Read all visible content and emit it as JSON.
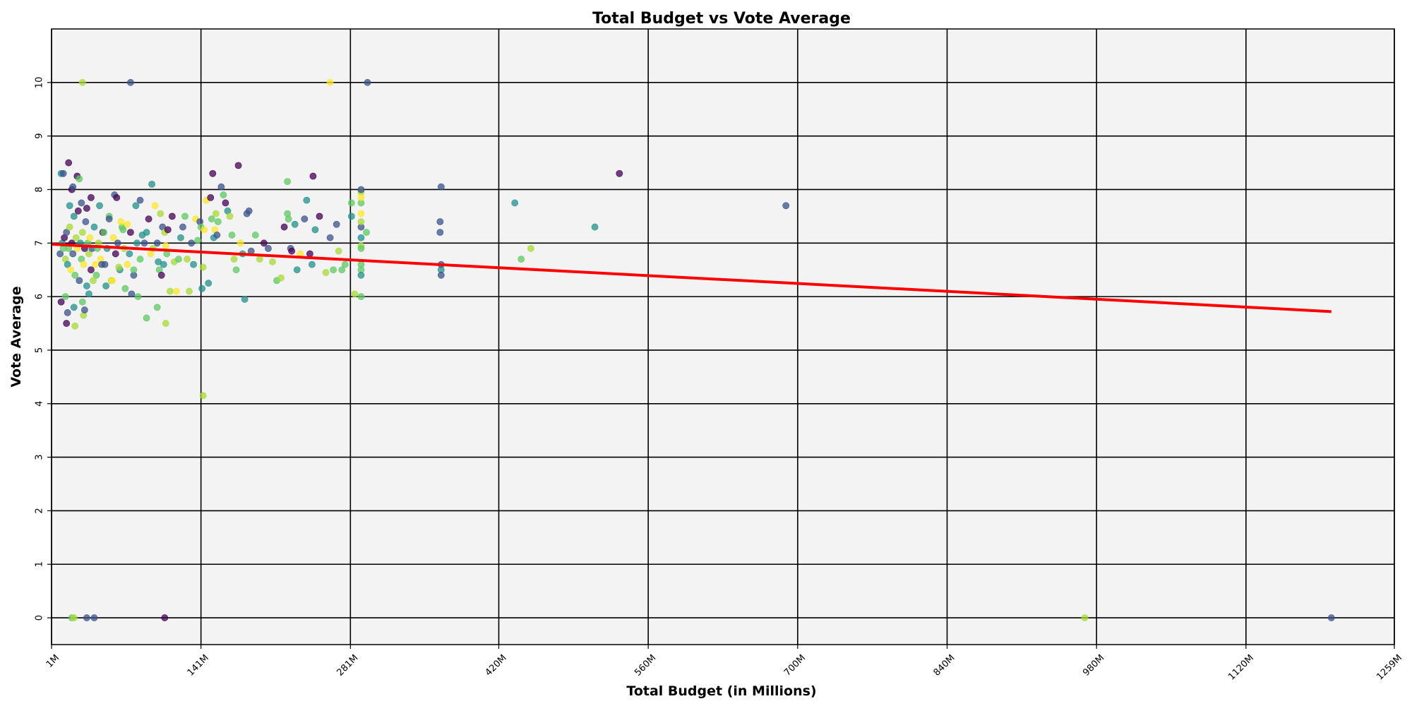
{
  "chart_data": {
    "type": "scatter",
    "title": "Total Budget vs Vote Average",
    "xlabel": "Total Budget (in Millions)",
    "ylabel": "Vote Average",
    "xlim": [
      1,
      1259
    ],
    "ylim": [
      -0.5,
      11
    ],
    "x_ticks": [
      1,
      141,
      281,
      420,
      560,
      700,
      840,
      980,
      1120,
      1259
    ],
    "x_tick_labels": [
      "1M",
      "141M",
      "281M",
      "420M",
      "560M",
      "700M",
      "840M",
      "980M",
      "1120M",
      "1259M"
    ],
    "y_ticks": [
      0,
      1,
      2,
      3,
      4,
      5,
      6,
      7,
      8,
      9,
      10
    ],
    "y_tick_labels": [
      "0",
      "1",
      "2",
      "3",
      "4",
      "5",
      "6",
      "7",
      "8",
      "9",
      "10"
    ],
    "grid": true,
    "legend": "none",
    "colors": {
      "plot_background": "#f3f3f3",
      "grid": "#000000",
      "trend_line": "#ff0000",
      "palette": [
        "#440154",
        "#3b528b",
        "#21918c",
        "#5ec962",
        "#a8db34",
        "#fde725"
      ]
    },
    "series": [
      {
        "points": [
          [
            9,
            6.8,
            1
          ],
          [
            11,
            7.0,
            2
          ],
          [
            12,
            6.9,
            3
          ],
          [
            13,
            7.1,
            0
          ],
          [
            14,
            6.7,
            4
          ],
          [
            15,
            7.2,
            1
          ],
          [
            16,
            6.6,
            2
          ],
          [
            17,
            6.9,
            3
          ],
          [
            18,
            7.3,
            4
          ],
          [
            19,
            6.5,
            5
          ],
          [
            20,
            7.0,
            0
          ],
          [
            21,
            6.8,
            1
          ],
          [
            22,
            7.5,
            2
          ],
          [
            23,
            6.4,
            3
          ],
          [
            24,
            7.1,
            4
          ],
          [
            25,
            6.9,
            5
          ],
          [
            26,
            7.6,
            0
          ],
          [
            27,
            6.3,
            1
          ],
          [
            28,
            7.0,
            2
          ],
          [
            29,
            6.7,
            3
          ],
          [
            30,
            7.2,
            4
          ],
          [
            31,
            6.6,
            5
          ],
          [
            32,
            6.9,
            0
          ],
          [
            33,
            7.4,
            1
          ],
          [
            34,
            6.2,
            2
          ],
          [
            35,
            7.0,
            3
          ],
          [
            36,
            6.8,
            4
          ],
          [
            37,
            7.1,
            5
          ],
          [
            38,
            6.5,
            0
          ],
          [
            39,
            6.9,
            1
          ],
          [
            41,
            7.3,
            2
          ],
          [
            43,
            6.4,
            3
          ],
          [
            45,
            7.0,
            4
          ],
          [
            47,
            6.7,
            5
          ],
          [
            49,
            7.2,
            0
          ],
          [
            51,
            6.6,
            1
          ],
          [
            53,
            6.9,
            2
          ],
          [
            55,
            7.5,
            3
          ],
          [
            57,
            6.3,
            4
          ],
          [
            59,
            7.1,
            5
          ],
          [
            61,
            6.8,
            0
          ],
          [
            63,
            7.0,
            1
          ],
          [
            65,
            6.5,
            2
          ],
          [
            67,
            7.3,
            3
          ],
          [
            69,
            6.9,
            4
          ],
          [
            72,
            6.6,
            5
          ],
          [
            75,
            7.2,
            0
          ],
          [
            78,
            6.4,
            1
          ],
          [
            81,
            7.0,
            2
          ],
          [
            84,
            6.7,
            3
          ],
          [
            10,
            8.3,
            2
          ],
          [
            10,
            5.9,
            0
          ],
          [
            12,
            8.3,
            1
          ],
          [
            14,
            6.0,
            3
          ],
          [
            15,
            5.5,
            0
          ],
          [
            16,
            5.7,
            1
          ],
          [
            17,
            8.5,
            0
          ],
          [
            18,
            7.7,
            2
          ],
          [
            20,
            8.0,
            0
          ],
          [
            21,
            8.05,
            1
          ],
          [
            22,
            5.8,
            2
          ],
          [
            23,
            5.45,
            4
          ],
          [
            25,
            8.25,
            0
          ],
          [
            27,
            8.2,
            3
          ],
          [
            29,
            7.75,
            1
          ],
          [
            30,
            5.9,
            3
          ],
          [
            31,
            5.65,
            4
          ],
          [
            32,
            5.75,
            1
          ],
          [
            34,
            7.65,
            0
          ],
          [
            36,
            6.05,
            2
          ],
          [
            38,
            7.85,
            0
          ],
          [
            40,
            6.3,
            4
          ],
          [
            42,
            6.6,
            5
          ],
          [
            44,
            6.9,
            3
          ],
          [
            46,
            7.7,
            2
          ],
          [
            48,
            6.6,
            1
          ],
          [
            50,
            7.2,
            3
          ],
          [
            52,
            6.2,
            2
          ],
          [
            55,
            7.45,
            1
          ],
          [
            58,
            6.3,
            5
          ],
          [
            60,
            7.9,
            1
          ],
          [
            62,
            7.85,
            0
          ],
          [
            64,
            6.55,
            4
          ],
          [
            66,
            7.4,
            5
          ],
          [
            68,
            7.25,
            3
          ],
          [
            70,
            6.15,
            3
          ],
          [
            72,
            7.35,
            5
          ],
          [
            74,
            6.8,
            2
          ],
          [
            76,
            6.05,
            1
          ],
          [
            78,
            6.5,
            3
          ],
          [
            80,
            7.7,
            2
          ],
          [
            82,
            6.0,
            3
          ],
          [
            84,
            7.8,
            1
          ],
          [
            86,
            7.15,
            2
          ],
          [
            88,
            7.0,
            1
          ],
          [
            90,
            7.2,
            2
          ],
          [
            92,
            7.45,
            0
          ],
          [
            94,
            6.8,
            5
          ],
          [
            96,
            6.9,
            4
          ],
          [
            98,
            7.7,
            5
          ],
          [
            100,
            7.0,
            1
          ],
          [
            101,
            6.65,
            2
          ],
          [
            102,
            6.5,
            3
          ],
          [
            103,
            7.55,
            4
          ],
          [
            104,
            6.4,
            0
          ],
          [
            105,
            7.3,
            1
          ],
          [
            106,
            6.6,
            2
          ],
          [
            107,
            7.2,
            4
          ],
          [
            108,
            6.95,
            5
          ],
          [
            109,
            6.8,
            3
          ],
          [
            110,
            7.25,
            0
          ],
          [
            112,
            6.1,
            4
          ],
          [
            114,
            7.5,
            0
          ],
          [
            116,
            6.65,
            4
          ],
          [
            118,
            6.1,
            5
          ],
          [
            120,
            6.7,
            3
          ],
          [
            122,
            7.1,
            2
          ],
          [
            124,
            7.3,
            1
          ],
          [
            126,
            7.5,
            3
          ],
          [
            128,
            6.7,
            4
          ],
          [
            130,
            6.1,
            4
          ],
          [
            132,
            7.0,
            1
          ],
          [
            134,
            6.6,
            2
          ],
          [
            136,
            7.45,
            5
          ],
          [
            138,
            7.05,
            3
          ],
          [
            140,
            7.4,
            1
          ],
          [
            141,
            7.3,
            3
          ],
          [
            142,
            6.15,
            2
          ],
          [
            143,
            6.55,
            4
          ],
          [
            144,
            7.25,
            5
          ],
          [
            146,
            7.8,
            5
          ],
          [
            148,
            6.25,
            2
          ],
          [
            150,
            7.85,
            0
          ],
          [
            151,
            7.45,
            3
          ],
          [
            152,
            8.3,
            0
          ],
          [
            153,
            7.1,
            2
          ],
          [
            154,
            7.25,
            5
          ],
          [
            155,
            7.55,
            4
          ],
          [
            156,
            7.15,
            1
          ],
          [
            157,
            7.4,
            3
          ],
          [
            143,
            4.15,
            4
          ],
          [
            100,
            5.8,
            3
          ],
          [
            108,
            5.5,
            4
          ],
          [
            90,
            5.6,
            3
          ],
          [
            95,
            8.1,
            2
          ],
          [
            160,
            8.05,
            1
          ],
          [
            162,
            7.9,
            3
          ],
          [
            164,
            7.75,
            0
          ],
          [
            166,
            7.6,
            2
          ],
          [
            168,
            7.5,
            4
          ],
          [
            170,
            7.15,
            3
          ],
          [
            172,
            6.7,
            4
          ],
          [
            174,
            6.5,
            3
          ],
          [
            176,
            8.45,
            0
          ],
          [
            178,
            7.0,
            5
          ],
          [
            180,
            6.8,
            2
          ],
          [
            182,
            5.95,
            2
          ],
          [
            184,
            7.55,
            1
          ],
          [
            186,
            7.6,
            1
          ],
          [
            188,
            6.85,
            1
          ],
          [
            192,
            7.15,
            3
          ],
          [
            196,
            6.7,
            4
          ],
          [
            200,
            7.0,
            0
          ],
          [
            204,
            6.9,
            1
          ],
          [
            208,
            6.65,
            4
          ],
          [
            212,
            6.3,
            3
          ],
          [
            216,
            6.35,
            4
          ],
          [
            219,
            7.3,
            0
          ],
          [
            222,
            7.55,
            3
          ],
          [
            222,
            8.15,
            3
          ],
          [
            223,
            7.45,
            3
          ],
          [
            225,
            6.9,
            1
          ],
          [
            226,
            6.85,
            0
          ],
          [
            229,
            7.35,
            2
          ],
          [
            231,
            6.5,
            2
          ],
          [
            234,
            6.8,
            5
          ],
          [
            238,
            7.45,
            1
          ],
          [
            240,
            7.8,
            2
          ],
          [
            243,
            6.8,
            0
          ],
          [
            245,
            6.6,
            2
          ],
          [
            246,
            8.25,
            0
          ],
          [
            248,
            7.25,
            2
          ],
          [
            252,
            7.5,
            0
          ],
          [
            258,
            6.45,
            4
          ],
          [
            262,
            7.1,
            1
          ],
          [
            265,
            6.5,
            3
          ],
          [
            268,
            7.35,
            1
          ],
          [
            270,
            6.85,
            4
          ],
          [
            273,
            6.5,
            3
          ],
          [
            276,
            6.6,
            3
          ],
          [
            282,
            7.5,
            2
          ],
          [
            282,
            7.75,
            3
          ],
          [
            285,
            6.05,
            4
          ],
          [
            291,
            6.6,
            3
          ],
          [
            291,
            6.95,
            4
          ],
          [
            291,
            7.1,
            2
          ],
          [
            291,
            7.3,
            1
          ],
          [
            291,
            7.55,
            5
          ],
          [
            291,
            7.75,
            3
          ],
          [
            291,
            7.95,
            4
          ],
          [
            291,
            8.0,
            1
          ],
          [
            291,
            6.5,
            3
          ],
          [
            291,
            6.4,
            2
          ],
          [
            291,
            6.9,
            3
          ],
          [
            291,
            7.4,
            4
          ],
          [
            291,
            7.85,
            5
          ],
          [
            291,
            6.0,
            3
          ],
          [
            296,
            7.2,
            3
          ],
          [
            365,
            7.4,
            1
          ],
          [
            365,
            7.2,
            1
          ],
          [
            366,
            8.05,
            1
          ],
          [
            366,
            6.5,
            2
          ],
          [
            366,
            6.6,
            1
          ],
          [
            366,
            6.4,
            1
          ],
          [
            435,
            7.75,
            2
          ],
          [
            441,
            6.7,
            3
          ],
          [
            450,
            6.9,
            4
          ],
          [
            510,
            7.3,
            2
          ],
          [
            533,
            8.3,
            0
          ],
          [
            689,
            7.7,
            1
          ],
          [
            20,
            0.0,
            3
          ],
          [
            22,
            0.0,
            4
          ],
          [
            34,
            0.0,
            1
          ],
          [
            41,
            0.0,
            1
          ],
          [
            107,
            0.0,
            0
          ],
          [
            969,
            0.0,
            4
          ],
          [
            1200,
            0.0,
            1
          ],
          [
            30,
            10.0,
            4
          ],
          [
            75,
            10.0,
            1
          ],
          [
            262,
            10.0,
            5
          ],
          [
            297,
            10.0,
            1
          ]
        ]
      }
    ],
    "trend_line": {
      "x": [
        1,
        1200
      ],
      "y": [
        6.98,
        5.72
      ]
    }
  }
}
